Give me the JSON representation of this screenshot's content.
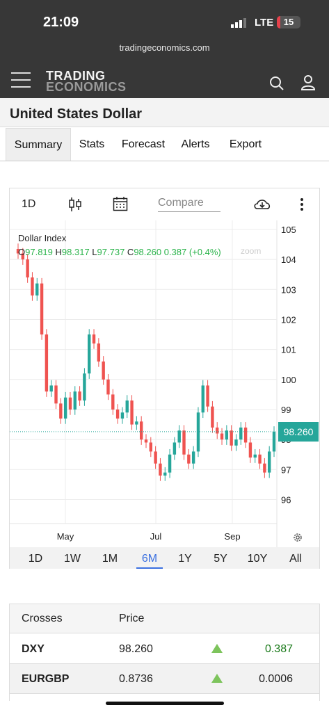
{
  "status_bar": {
    "time": "21:09",
    "network": "LTE",
    "battery": "15",
    "battery_level": 0.15
  },
  "browser": {
    "url": "tradingeconomics.com"
  },
  "header": {
    "logo_line1": "TRADING",
    "logo_line2": "ECONOMICS",
    "icons": [
      "hamburger-menu-icon",
      "search-icon",
      "user-icon"
    ]
  },
  "page": {
    "title": "United States Dollar"
  },
  "tabs": [
    {
      "label": "Summary",
      "active": true
    },
    {
      "label": "Stats"
    },
    {
      "label": "Forecast"
    },
    {
      "label": "Alerts"
    },
    {
      "label": "Export"
    }
  ],
  "chart_toolbar": {
    "interval": "1D",
    "compare_placeholder": "Compare",
    "icons": [
      "candlestick-icon",
      "calendar-icon",
      "cloud-download-icon",
      "more-vertical-icon",
      "gear-icon"
    ]
  },
  "chart_legend": {
    "name": "Dollar Index",
    "o_label": "O",
    "o": "97.819",
    "h_label": "H",
    "h": "98.317",
    "l_label": "L",
    "l": "97.737",
    "c_label": "C",
    "c": "98.260",
    "change": "0.387 (+0.4%)",
    "zoom_hint": "zoom"
  },
  "chart_data": {
    "type": "line",
    "title": "Dollar Index",
    "x_tick_labels": [
      "May",
      "Jul",
      "Sep"
    ],
    "y_tick_labels": [
      "105",
      "104",
      "103",
      "102",
      "101",
      "100",
      "99",
      "98",
      "97",
      "96"
    ],
    "ylim": [
      95.2,
      105.3
    ],
    "last_price": "98.260",
    "last_value": 98.26,
    "grid": true,
    "colors": {
      "up": "#26a69a",
      "down": "#ef5350"
    },
    "series": [
      {
        "values": [
          104.2,
          104.0,
          103.4,
          102.8,
          103.2,
          101.5,
          99.6,
          99.8,
          99.2,
          98.7,
          99.4,
          99.0,
          99.6,
          99.3,
          100.2,
          101.5,
          101.2,
          100.6,
          100.0,
          99.5,
          99.0,
          98.7,
          98.9,
          99.3,
          98.5,
          98.6,
          98.0,
          97.9,
          97.6,
          97.2,
          96.8,
          96.9,
          97.5,
          97.9,
          98.3,
          97.5,
          97.2,
          97.6,
          98.9,
          99.8,
          99.1,
          98.4,
          98.2,
          98.0,
          98.3,
          97.8,
          98.0,
          98.4,
          97.9,
          97.4,
          97.5,
          97.2,
          96.9,
          97.6,
          98.26
        ]
      }
    ]
  },
  "ranges": [
    {
      "label": "1D"
    },
    {
      "label": "1W"
    },
    {
      "label": "1M"
    },
    {
      "label": "6M",
      "active": true
    },
    {
      "label": "1Y"
    },
    {
      "label": "5Y"
    },
    {
      "label": "10Y"
    },
    {
      "label": "All"
    }
  ],
  "crosses": {
    "headers": [
      "Crosses",
      "Price"
    ],
    "rows": [
      {
        "symbol": "DXY",
        "price": "98.260",
        "change": "0.387",
        "direction": "up"
      },
      {
        "symbol": "EURGBP",
        "price": "0.8736",
        "change": "0.0006",
        "direction": "up"
      }
    ]
  }
}
